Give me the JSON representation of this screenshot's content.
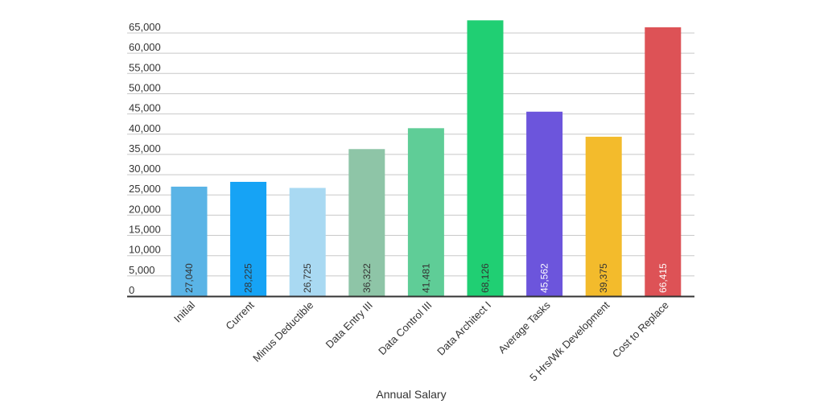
{
  "chart_data": {
    "type": "bar",
    "title": "",
    "xlabel": "Annual Salary",
    "ylabel": "",
    "categories": [
      "Initial",
      "Current",
      "Minus Deductible",
      "Data Entry III",
      "Data Control III",
      "Data Architect I",
      "Average Tasks",
      "5 Hrs/Wk Development",
      "Cost to Replace"
    ],
    "values": [
      27040,
      28225,
      26725,
      36322,
      41481,
      68126,
      45562,
      39375,
      66415
    ],
    "data_labels": [
      "27,040",
      "28,225",
      "26,725",
      "36,322",
      "41,481",
      "68,126",
      "45,562",
      "39,375",
      "66,415"
    ],
    "colors": [
      "#5ab4e6",
      "#16a3f5",
      "#a9d9f2",
      "#8ec5a7",
      "#5fcd97",
      "#20cf73",
      "#6c55dc",
      "#f3bb2c",
      "#dd5256"
    ],
    "data_label_colors": [
      "#333333",
      "#333333",
      "#333333",
      "#333333",
      "#333333",
      "#333333",
      "#ffffff",
      "#333333",
      "#ffffff"
    ],
    "yticks": [
      "0",
      "5,000",
      "10,000",
      "15,000",
      "20,000",
      "25,000",
      "30,000",
      "35,000",
      "40,000",
      "45,000",
      "50,000",
      "55,000",
      "60,000",
      "65,000"
    ],
    "ylim": [
      0,
      65000
    ],
    "ystep": 5000,
    "grid": true,
    "legend": "none"
  }
}
